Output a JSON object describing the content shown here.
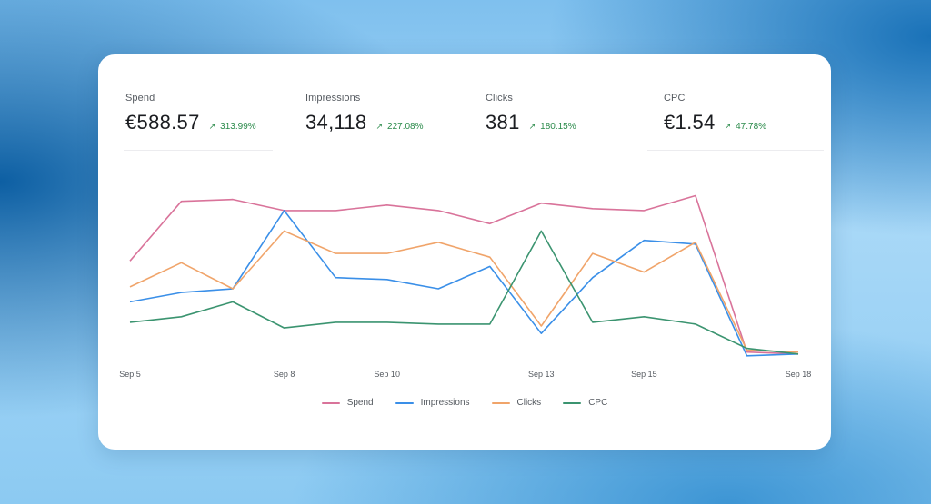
{
  "kpis": [
    {
      "label": "Spend",
      "value": "€588.57",
      "change": "313.99%"
    },
    {
      "label": "Impressions",
      "value": "34,118",
      "change": "227.08%"
    },
    {
      "label": "Clicks",
      "value": "381",
      "change": "180.15%"
    },
    {
      "label": "CPC",
      "value": "€1.54",
      "change": "47.78%"
    }
  ],
  "colors": {
    "spend": "#d9739a",
    "impressions": "#3a8fe8",
    "clicks": "#f0a46a",
    "cpc": "#3b9470",
    "positive": "#2a8a4a"
  },
  "chart_data": {
    "type": "line",
    "title": "",
    "xlabel": "",
    "ylabel": "",
    "y_axis_visible": false,
    "ylim": [
      0,
      100
    ],
    "grid": false,
    "legend_position": "bottom-center",
    "x": [
      "Sep 5",
      "Sep 6",
      "Sep 7",
      "Sep 8",
      "Sep 9",
      "Sep 10",
      "Sep 11",
      "Sep 12",
      "Sep 13",
      "Sep 14",
      "Sep 15",
      "Sep 16",
      "Sep 17",
      "Sep 18"
    ],
    "x_tick_labels": [
      "Sep 5",
      "Sep 8",
      "Sep 10",
      "Sep 13",
      "Sep 15",
      "Sep 18"
    ],
    "series": [
      {
        "name": "Spend",
        "color": "#d9739a",
        "values": [
          55,
          87,
          88,
          82,
          82,
          85,
          82,
          75,
          86,
          83,
          82,
          90,
          6,
          5
        ]
      },
      {
        "name": "Impressions",
        "color": "#3a8fe8",
        "values": [
          33,
          38,
          40,
          82,
          46,
          45,
          40,
          52,
          16,
          46,
          66,
          64,
          4,
          5
        ]
      },
      {
        "name": "Clicks",
        "color": "#f0a46a",
        "values": [
          41,
          54,
          40,
          71,
          59,
          59,
          65,
          57,
          20,
          59,
          49,
          65,
          7,
          6
        ]
      },
      {
        "name": "CPC",
        "color": "#3b9470",
        "values": [
          22,
          25,
          33,
          19,
          22,
          22,
          21,
          21,
          71,
          22,
          25,
          21,
          8,
          5
        ]
      }
    ]
  }
}
